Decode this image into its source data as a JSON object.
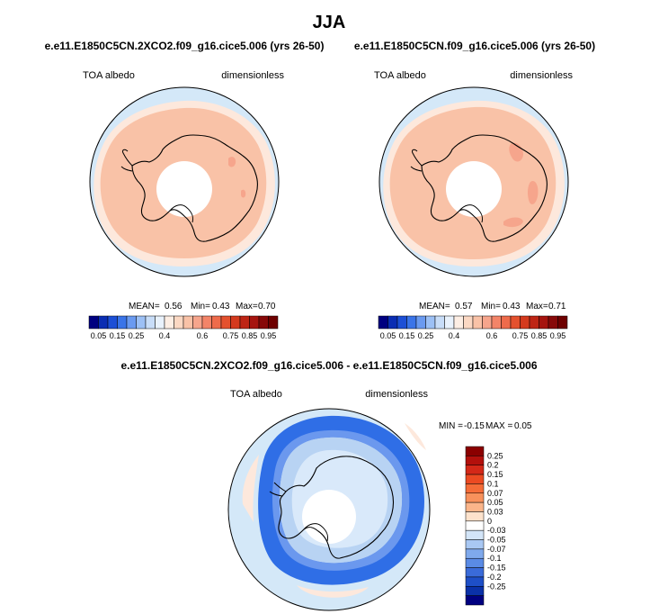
{
  "page_title": "JJA",
  "colors": {
    "ocean_light": "#d4e8f8",
    "sea_ice_pale": "#fde8dc",
    "albedo_mid": "#f9c2a7",
    "albedo_high": "#f6a58c",
    "pole_hole": "#ffffff",
    "coast": "#000000",
    "diff_strong_negative": "#2f6ee6",
    "diff_mid_negative": "#6b98ee",
    "diff_weak_negative": "#b8d3f3"
  },
  "chart_data": [
    {
      "type": "polar-map",
      "id": "panel_left",
      "title": "e.e11.E1850C5CN.2XCO2.f09_g16.cice5.006 (yrs 26-50)",
      "variable": "TOA albedo",
      "units": "dimensionless",
      "stats": {
        "mean_label": "MEAN=",
        "mean": "0.56",
        "min_label": "Min=",
        "min": "0.43",
        "max_label": "Max=",
        "max": "0.70"
      },
      "colorbar": {
        "orientation": "horizontal",
        "levels": [
          "0.05",
          "0.1",
          "0.15",
          "0.2",
          "0.25",
          "0.3",
          "0.35",
          "0.4",
          "0.45",
          "0.5",
          "0.55",
          "0.6",
          "0.65",
          "0.7",
          "0.75",
          "0.8",
          "0.85",
          "0.9",
          "0.95"
        ],
        "tick_labels": [
          "0.05",
          "0.15",
          "0.25",
          "0.4",
          "0.6",
          "0.75",
          "0.85",
          "0.95"
        ],
        "colors": [
          "#000080",
          "#0a2db3",
          "#1c4fd6",
          "#3a74e8",
          "#6a9af0",
          "#9cc0f5",
          "#c8ddf8",
          "#e9f2fc",
          "#fdeee4",
          "#fbd8c3",
          "#f9c2a7",
          "#f6a58c",
          "#f38468",
          "#ee6b4b",
          "#e4512e",
          "#d43a1e",
          "#be2515",
          "#a6140f",
          "#870909",
          "#6e0000"
        ]
      }
    },
    {
      "type": "polar-map",
      "id": "panel_right",
      "title": "e.e11.E1850C5CN.f09_g16.cice5.006 (yrs 26-50)",
      "variable": "TOA albedo",
      "units": "dimensionless",
      "stats": {
        "mean_label": "MEAN=",
        "mean": "0.57",
        "min_label": "Min=",
        "min": "0.43",
        "max_label": "Max=",
        "max": "0.71"
      },
      "colorbar": {
        "orientation": "horizontal",
        "levels": [
          "0.05",
          "0.1",
          "0.15",
          "0.2",
          "0.25",
          "0.3",
          "0.35",
          "0.4",
          "0.45",
          "0.5",
          "0.55",
          "0.6",
          "0.65",
          "0.7",
          "0.75",
          "0.8",
          "0.85",
          "0.9",
          "0.95"
        ],
        "tick_labels": [
          "0.05",
          "0.15",
          "0.25",
          "0.4",
          "0.6",
          "0.75",
          "0.85",
          "0.95"
        ],
        "colors": [
          "#000080",
          "#0a2db3",
          "#1c4fd6",
          "#3a74e8",
          "#6a9af0",
          "#9cc0f5",
          "#c8ddf8",
          "#e9f2fc",
          "#fdeee4",
          "#fbd8c3",
          "#f9c2a7",
          "#f6a58c",
          "#f38468",
          "#ee6b4b",
          "#e4512e",
          "#d43a1e",
          "#be2515",
          "#a6140f",
          "#870909",
          "#6e0000"
        ]
      }
    },
    {
      "type": "polar-map-difference",
      "id": "panel_diff",
      "title": "e.e11.E1850C5CN.2XCO2.f09_g16.cice5.006 - e.e11.E1850C5CN.f09_g16.cice5.006",
      "variable": "TOA albedo",
      "units": "dimensionless",
      "stats": {
        "min_label": "MIN =",
        "min": "-0.15",
        "max_label": "MAX =",
        "max": "0.05"
      },
      "colorbar": {
        "orientation": "vertical",
        "labels": [
          "0.25",
          "0.2",
          "0.15",
          "0.1",
          "0.07",
          "0.05",
          "0.03",
          "0",
          "-0.03",
          "-0.05",
          "-0.07",
          "-0.1",
          "-0.15",
          "-0.2",
          "-0.25"
        ],
        "colors": [
          "#8b0000",
          "#b3100c",
          "#d42818",
          "#ec4a22",
          "#f56c38",
          "#f8915c",
          "#fbb58a",
          "#fde2cc",
          "#ffffff",
          "#d3e5f8",
          "#a9c8f3",
          "#7fa9ec",
          "#5a8be5",
          "#3a6bd9",
          "#1e4fc7",
          "#0a31a8",
          "#000080"
        ]
      }
    }
  ]
}
